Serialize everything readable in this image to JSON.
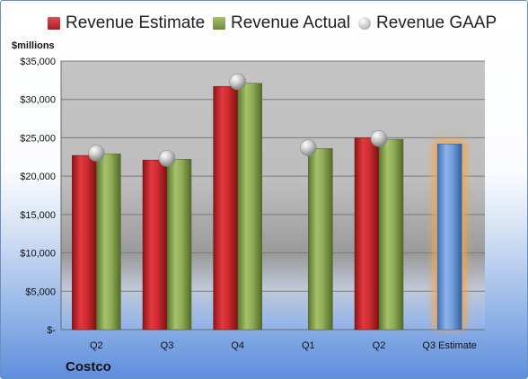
{
  "chart_data": {
    "type": "bar",
    "ylabel": "$millions",
    "ylim": [
      0,
      35000
    ],
    "yticks": [
      0,
      5000,
      10000,
      15000,
      20000,
      25000,
      30000,
      35000
    ],
    "ytick_labels": [
      "$-",
      "$5,000",
      "$10,000",
      "$15,000",
      "$20,000",
      "$25,000",
      "$30,000",
      "$35,000"
    ],
    "categories": [
      "Q2",
      "Q3",
      "Q4",
      "Q1",
      "Q2",
      "Q3 Estimate"
    ],
    "series": [
      {
        "name": "Revenue Estimate",
        "type": "bar",
        "color": "#c9282d",
        "values": [
          22700,
          22100,
          31700,
          null,
          25000,
          24200
        ]
      },
      {
        "name": "Revenue Actual",
        "type": "bar",
        "color": "#8eaa55",
        "values": [
          22900,
          22200,
          32100,
          23600,
          24800,
          null
        ]
      },
      {
        "name": "Revenue GAAP",
        "type": "marker",
        "color": "#b0b0b0",
        "values": [
          23000,
          22300,
          32300,
          23700,
          24900,
          null
        ]
      }
    ],
    "estimate_bar_color": "#6f9bd8",
    "estimate_glow_color": "#f5a64a",
    "grid": true,
    "legend_position": "top"
  },
  "footer": {
    "company": "Costco"
  }
}
